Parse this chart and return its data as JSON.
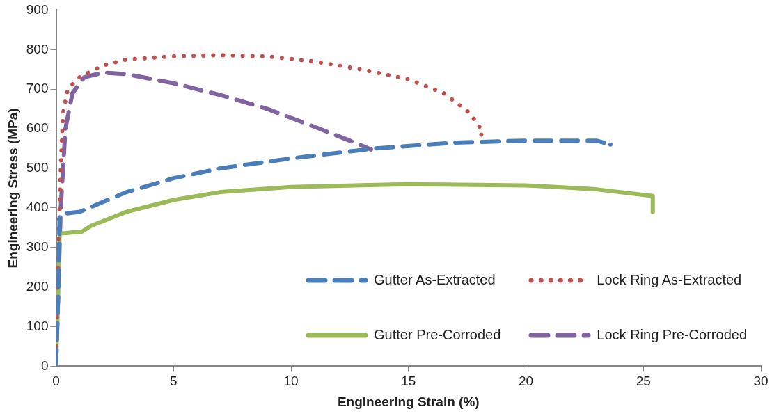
{
  "chart_data": {
    "type": "line",
    "xlabel": "Engineering Strain (%)",
    "ylabel": "Engineering Stress (MPa)",
    "xlim": [
      0,
      30
    ],
    "xticks": [
      0,
      5,
      10,
      15,
      20,
      25,
      30
    ],
    "ylim": [
      0,
      900
    ],
    "yticks": [
      0,
      100,
      200,
      300,
      400,
      500,
      600,
      700,
      800,
      900
    ],
    "grid": false,
    "legend": "bottom right",
    "marker": "none",
    "series": [
      {
        "name": "Gutter As-Extracted",
        "color": "#4a7ebb",
        "line_style": "dashed",
        "x": [
          0,
          0.1,
          0.15,
          0.3,
          1,
          2,
          3,
          5,
          7,
          10,
          13.5,
          17,
          20,
          23,
          23.6
        ],
        "values": [
          0,
          200,
          380,
          385,
          390,
          415,
          440,
          475,
          500,
          525,
          550,
          565,
          570,
          570,
          560
        ]
      },
      {
        "name": "Lock Ring As-Extracted",
        "color": "#c0504d",
        "line_style": "dotted",
        "x": [
          0,
          0.1,
          0.2,
          0.3,
          0.5,
          1,
          2,
          3,
          5,
          7,
          9,
          11,
          13,
          15,
          16.5,
          17.5,
          18,
          18.1
        ],
        "values": [
          0,
          300,
          500,
          640,
          700,
          730,
          760,
          775,
          783,
          786,
          783,
          770,
          750,
          725,
          690,
          645,
          610,
          585
        ]
      },
      {
        "name": "Gutter Pre-Corroded",
        "color": "#9bbb59",
        "line_style": "solid",
        "x": [
          0,
          0.1,
          0.15,
          0.5,
          1.1,
          1.5,
          3,
          5,
          7,
          10,
          15,
          20,
          23,
          25.4,
          25.4
        ],
        "values": [
          0,
          200,
          335,
          337,
          340,
          355,
          390,
          420,
          440,
          453,
          460,
          457,
          447,
          430,
          390
        ]
      },
      {
        "name": "Lock Ring Pre-Corroded",
        "color": "#8064a2",
        "line_style": "dashed",
        "x": [
          0,
          0.2,
          0.4,
          0.7,
          1.2,
          2,
          3,
          5,
          7,
          9,
          11,
          12.5,
          13.4
        ],
        "values": [
          0,
          400,
          600,
          690,
          730,
          742,
          738,
          715,
          685,
          650,
          605,
          570,
          548
        ]
      }
    ]
  }
}
